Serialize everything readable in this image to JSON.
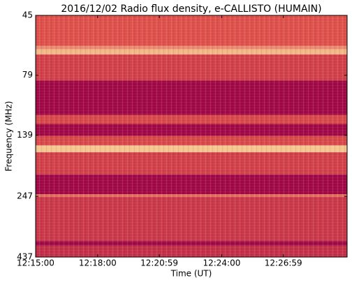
{
  "chart_data": {
    "type": "spectrogram",
    "title": "2016/12/02  Radio flux density, e-CALLISTO (HUMAIN)",
    "xlabel": "Time (UT)",
    "ylabel": "Frequency (MHz)",
    "xlim": [
      0,
      904
    ],
    "xticks": [
      {
        "value": 0,
        "label": "12:15:00"
      },
      {
        "value": 180,
        "label": "12:18:00"
      },
      {
        "value": 359,
        "label": "12:20:59"
      },
      {
        "value": 540,
        "label": "12:24:00"
      },
      {
        "value": 719,
        "label": "12:26:59"
      }
    ],
    "ylim": [
      45,
      437
    ],
    "y_inverted": true,
    "y_log": true,
    "yticks": [
      45,
      79,
      139,
      247,
      437
    ],
    "colormap": [
      "#9b0045",
      "#e0504a",
      "#fbe2a0"
    ],
    "bands": [
      {
        "from": 45,
        "to": 60,
        "level": 0.5
      },
      {
        "from": 60,
        "to": 62,
        "level": 0.7
      },
      {
        "from": 62,
        "to": 65,
        "level": 0.85
      },
      {
        "from": 65,
        "to": 83,
        "level": 0.4
      },
      {
        "from": 83,
        "to": 115,
        "level": 0.05
      },
      {
        "from": 115,
        "to": 125,
        "level": 0.45
      },
      {
        "from": 125,
        "to": 140,
        "level": 0.05
      },
      {
        "from": 140,
        "to": 153,
        "level": 0.45
      },
      {
        "from": 153,
        "to": 163,
        "level": 0.9
      },
      {
        "from": 163,
        "to": 201,
        "level": 0.4
      },
      {
        "from": 201,
        "to": 242,
        "level": 0.05
      },
      {
        "from": 242,
        "to": 248,
        "level": 0.6
      },
      {
        "from": 248,
        "to": 376,
        "level": 0.35
      },
      {
        "from": 376,
        "to": 393,
        "level": 0.05
      },
      {
        "from": 393,
        "to": 437,
        "level": 0.3
      }
    ]
  }
}
